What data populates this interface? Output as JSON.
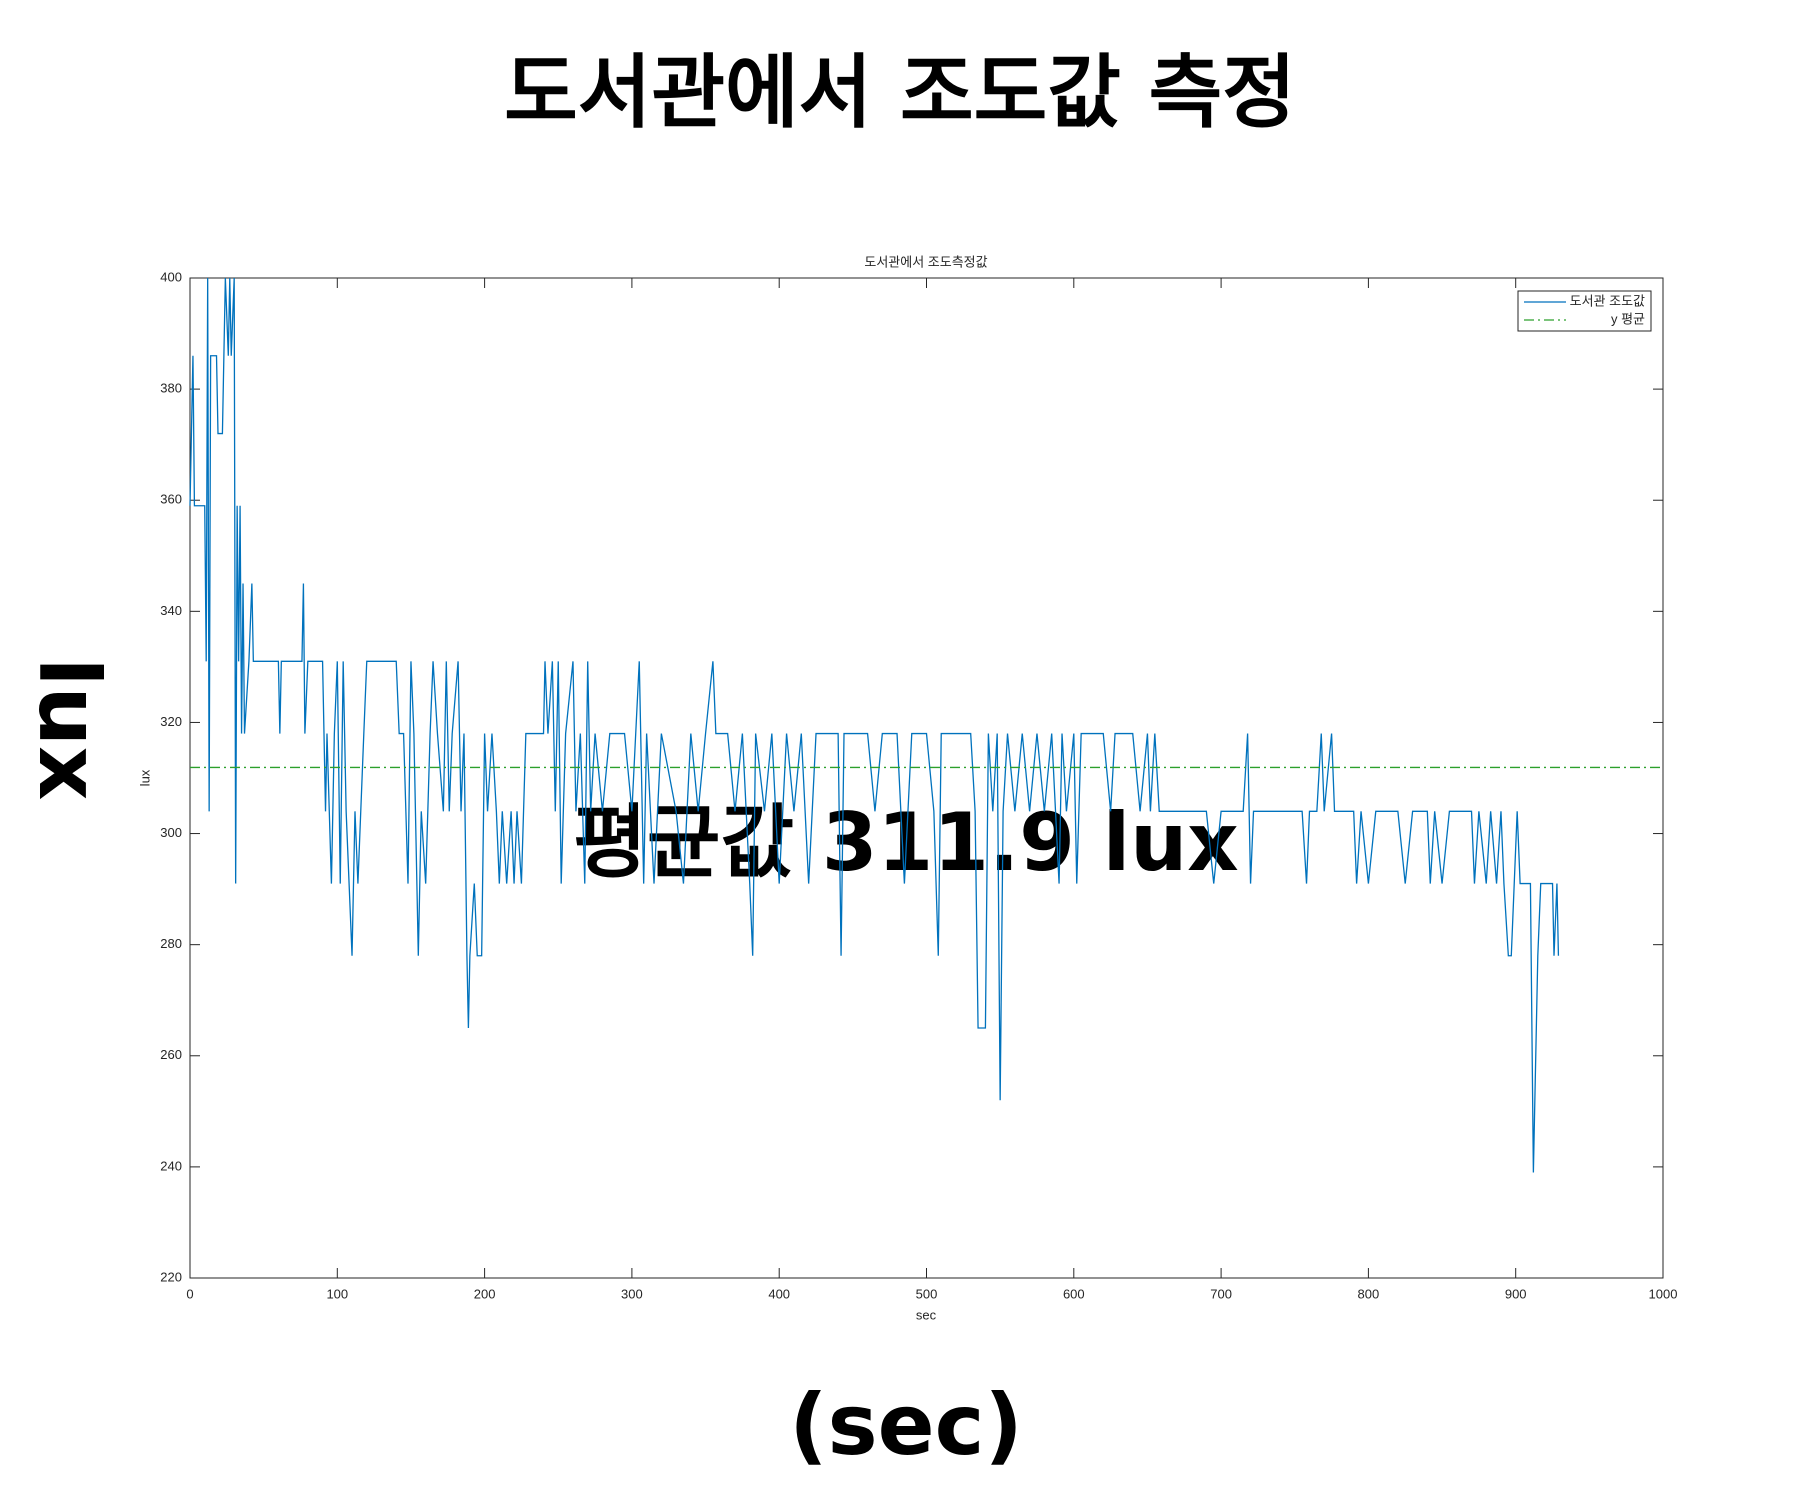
{
  "page_title": "도서관에서 조도값 측정",
  "annotation": "평균값 311.9 lux",
  "page_xlabel": "(sec)",
  "page_ylabel": "lux",
  "chart_data": {
    "type": "line",
    "title": "도서관에서 조도측정값",
    "xlabel": "sec",
    "ylabel": "lux",
    "xlim": [
      0,
      1000
    ],
    "xticks": [
      0,
      100,
      200,
      300,
      400,
      500,
      600,
      700,
      800,
      900,
      1000
    ],
    "ylim": [
      220,
      400
    ],
    "yticks": [
      220,
      240,
      260,
      280,
      300,
      320,
      340,
      360,
      380,
      400
    ],
    "grid": false,
    "legend": "upper right",
    "series": [
      {
        "name": "도서관 조도값",
        "color": "#0072bd",
        "linestyle": "solid",
        "x": [
          0,
          2,
          3,
          10,
          11,
          12,
          13,
          14,
          18,
          19,
          22,
          23,
          24,
          26,
          27,
          28,
          30,
          31,
          32,
          33,
          34,
          35,
          36,
          37,
          40,
          42,
          43,
          60,
          61,
          62,
          76,
          77,
          78,
          80,
          90,
          92,
          93,
          96,
          98,
          100,
          102,
          104,
          106,
          110,
          112,
          114,
          118,
          120,
          140,
          142,
          145,
          148,
          150,
          152,
          155,
          157,
          160,
          163,
          165,
          168,
          172,
          174,
          176,
          178,
          182,
          184,
          186,
          188,
          189,
          190,
          193,
          195,
          198,
          200,
          202,
          205,
          208,
          210,
          212,
          215,
          218,
          220,
          222,
          225,
          228,
          240,
          241,
          243,
          246,
          248,
          250,
          252,
          255,
          260,
          262,
          265,
          268,
          270,
          272,
          275,
          280,
          285,
          295,
          300,
          305,
          308,
          310,
          315,
          320,
          330,
          335,
          340,
          345,
          350,
          355,
          357,
          365,
          370,
          375,
          380,
          382,
          384,
          390,
          395,
          400,
          405,
          410,
          415,
          420,
          425,
          440,
          442,
          444,
          460,
          465,
          470,
          480,
          485,
          490,
          500,
          505,
          508,
          510,
          530,
          533,
          535,
          540,
          542,
          545,
          548,
          550,
          552,
          555,
          560,
          565,
          570,
          575,
          580,
          585,
          590,
          592,
          595,
          600,
          602,
          605,
          620,
          625,
          628,
          640,
          645,
          650,
          652,
          655,
          658,
          690,
          695,
          700,
          715,
          718,
          720,
          722,
          740,
          755,
          758,
          760,
          765,
          768,
          770,
          775,
          777,
          790,
          792,
          795,
          800,
          805,
          820,
          825,
          830,
          840,
          842,
          845,
          850,
          855,
          870,
          872,
          875,
          880,
          883,
          887,
          890,
          892,
          895,
          897,
          899,
          901,
          903,
          910,
          912,
          915,
          917,
          925,
          926,
          928,
          929
        ],
        "values": [
          359,
          386,
          359,
          359,
          331,
          400,
          304,
          386,
          386,
          372,
          372,
          386,
          400,
          386,
          400,
          386,
          400,
          291,
          359,
          331,
          359,
          318,
          345,
          318,
          331,
          345,
          331,
          331,
          318,
          331,
          331,
          345,
          318,
          331,
          331,
          304,
          318,
          291,
          318,
          331,
          291,
          331,
          304,
          278,
          304,
          291,
          318,
          331,
          331,
          318,
          318,
          291,
          331,
          318,
          278,
          304,
          291,
          318,
          331,
          318,
          304,
          331,
          304,
          318,
          331,
          304,
          318,
          278,
          265,
          278,
          291,
          278,
          278,
          318,
          304,
          318,
          304,
          291,
          304,
          291,
          304,
          291,
          304,
          291,
          318,
          318,
          331,
          318,
          331,
          304,
          331,
          291,
          318,
          331,
          304,
          318,
          291,
          331,
          304,
          318,
          304,
          318,
          318,
          304,
          331,
          291,
          318,
          291,
          318,
          304,
          291,
          318,
          304,
          318,
          331,
          318,
          318,
          304,
          318,
          291,
          278,
          318,
          304,
          318,
          291,
          318,
          304,
          318,
          291,
          318,
          318,
          278,
          318,
          318,
          304,
          318,
          318,
          291,
          318,
          318,
          304,
          278,
          318,
          318,
          304,
          265,
          265,
          318,
          304,
          318,
          252,
          304,
          318,
          304,
          318,
          304,
          318,
          304,
          318,
          291,
          318,
          304,
          318,
          291,
          318,
          318,
          304,
          318,
          318,
          304,
          318,
          304,
          318,
          304,
          304,
          291,
          304,
          304,
          318,
          291,
          304,
          304,
          304,
          291,
          304,
          304,
          318,
          304,
          318,
          304,
          304,
          291,
          304,
          291,
          304,
          304,
          291,
          304,
          304,
          291,
          304,
          291,
          304,
          304,
          291,
          304,
          291,
          304,
          291,
          304,
          291,
          278,
          278,
          291,
          304,
          291,
          291,
          239,
          278,
          291,
          291,
          278,
          291,
          278
        ]
      },
      {
        "name": "y 평균",
        "color": "#2ca02c",
        "linestyle": "dashdot",
        "x": [
          0,
          1000
        ],
        "values": [
          311.9,
          311.9
        ]
      }
    ]
  }
}
